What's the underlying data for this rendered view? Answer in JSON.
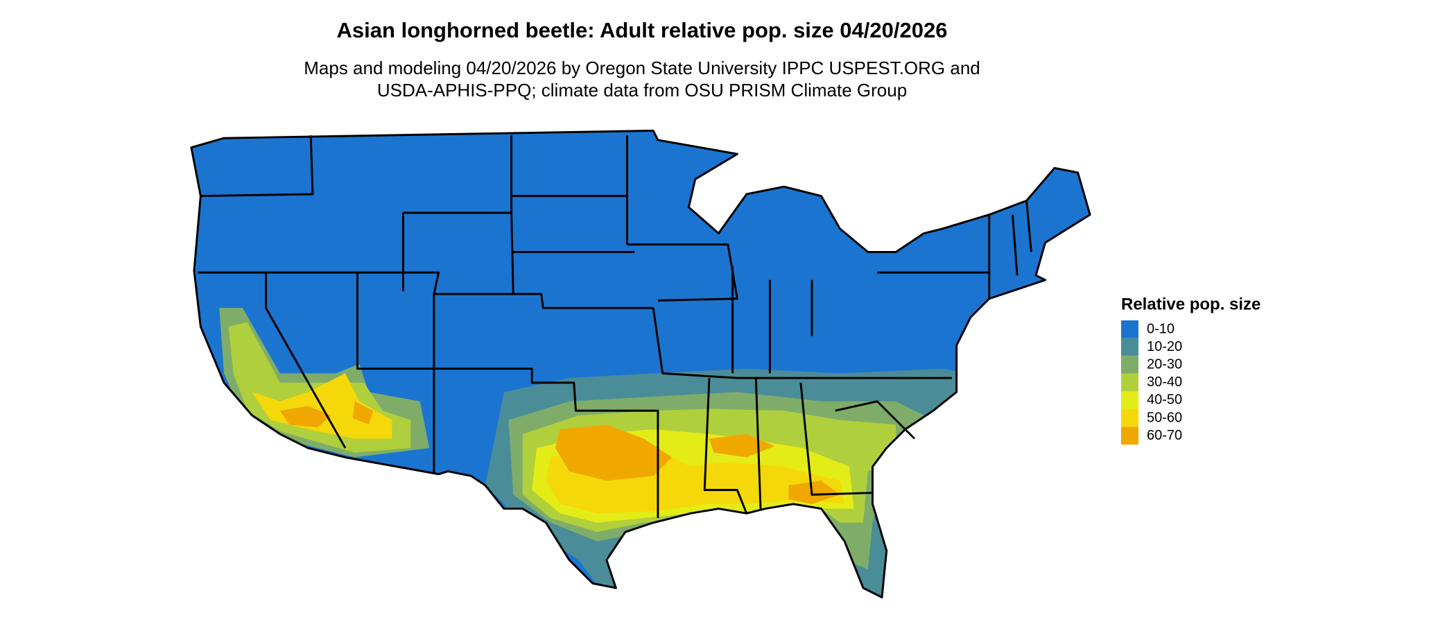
{
  "header": {
    "title": "Asian longhorned beetle: Adult relative pop. size 04/20/2026",
    "subtitle": [
      "Maps and modeling 04/20/2026 by Oregon State University IPPC USPEST.ORG and",
      "USDA-APHIS-PPQ; climate data from OSU PRISM Climate Group"
    ]
  },
  "legend": {
    "title": "Relative pop. size",
    "items": [
      {
        "label": "0-10",
        "color": "#1b74d0"
      },
      {
        "label": "10-20",
        "color": "#4a8d98"
      },
      {
        "label": "20-30",
        "color": "#7fad69"
      },
      {
        "label": "30-40",
        "color": "#b0cf3c"
      },
      {
        "label": "40-50",
        "color": "#e4ec18"
      },
      {
        "label": "50-60",
        "color": "#f5d80a"
      },
      {
        "label": "60-70",
        "color": "#f0a800"
      }
    ]
  }
}
